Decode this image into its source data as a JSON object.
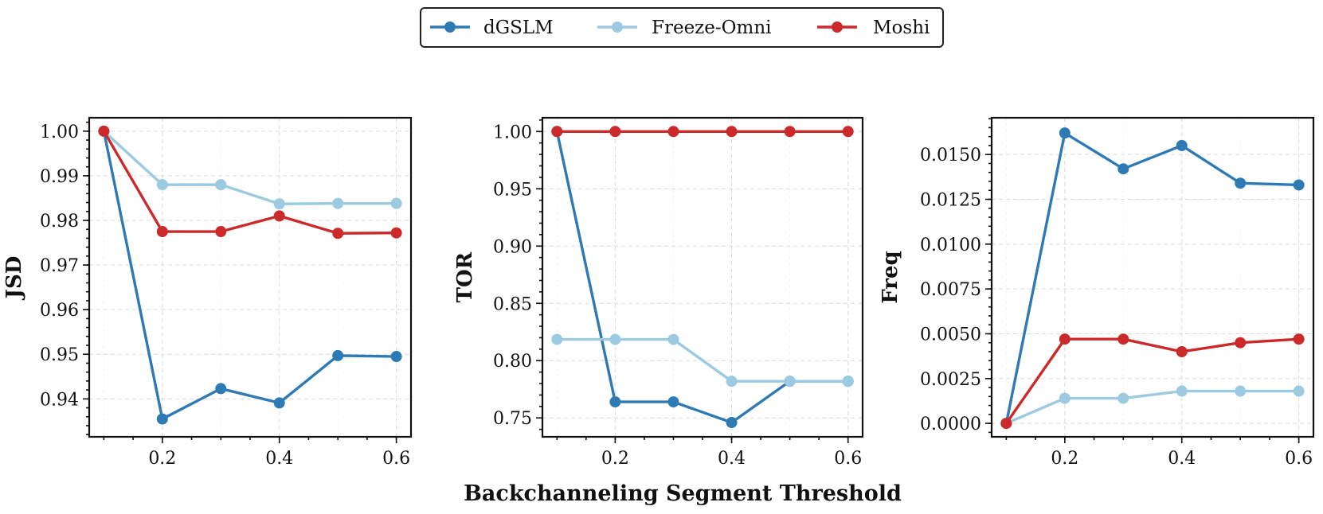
{
  "figure": {
    "xlabel": "Backchanneling Segment Threshold"
  },
  "legend": {
    "items": [
      {
        "name": "dGSLM",
        "color": "#2e7ab5"
      },
      {
        "name": "Freeze-Omni",
        "color": "#9ccae0"
      },
      {
        "name": "Moshi",
        "color": "#cc2a2a"
      }
    ]
  },
  "chart_data": [
    {
      "type": "line",
      "ylabel": "JSD",
      "x": [
        0.1,
        0.2,
        0.3,
        0.4,
        0.5,
        0.6
      ],
      "xlim": [
        0.075,
        0.625
      ],
      "ylim": [
        0.9315,
        1.003
      ],
      "xticks": [
        0.2,
        0.4,
        0.6
      ],
      "xtick_labels": [
        "0.2",
        "0.4",
        "0.6"
      ],
      "yticks": [
        0.94,
        0.95,
        0.96,
        0.97,
        0.98,
        0.99,
        1.0
      ],
      "ytick_labels": [
        "0.94",
        "0.95",
        "0.96",
        "0.97",
        "0.98",
        "0.99",
        "1.00"
      ],
      "series": [
        {
          "name": "dGSLM",
          "color": "#2e7ab5",
          "values": [
            1.0,
            0.9355,
            0.9423,
            0.9391,
            0.9497,
            0.9495
          ]
        },
        {
          "name": "Freeze-Omni",
          "color": "#9ccae0",
          "values": [
            1.0,
            0.988,
            0.988,
            0.9837,
            0.9838,
            0.9838
          ]
        },
        {
          "name": "Moshi",
          "color": "#cc2a2a",
          "values": [
            1.0,
            0.9775,
            0.9775,
            0.981,
            0.9771,
            0.9772
          ]
        }
      ]
    },
    {
      "type": "line",
      "ylabel": "TOR",
      "x": [
        0.1,
        0.2,
        0.3,
        0.4,
        0.5,
        0.6
      ],
      "xlim": [
        0.075,
        0.625
      ],
      "ylim": [
        0.7335,
        1.012
      ],
      "xticks": [
        0.2,
        0.4,
        0.6
      ],
      "xtick_labels": [
        "0.2",
        "0.4",
        "0.6"
      ],
      "yticks": [
        0.75,
        0.8,
        0.85,
        0.9,
        0.95,
        1.0
      ],
      "ytick_labels": [
        "0.75",
        "0.80",
        "0.85",
        "0.90",
        "0.95",
        "1.00"
      ],
      "series": [
        {
          "name": "dGSLM",
          "color": "#2e7ab5",
          "values": [
            1.0,
            0.764,
            0.764,
            0.746,
            0.782,
            0.782
          ]
        },
        {
          "name": "Freeze-Omni",
          "color": "#9ccae0",
          "values": [
            0.8185,
            0.8185,
            0.8185,
            0.782,
            0.782,
            0.782
          ]
        },
        {
          "name": "Moshi",
          "color": "#cc2a2a",
          "values": [
            1.0,
            1.0,
            1.0,
            1.0,
            1.0,
            1.0
          ]
        }
      ]
    },
    {
      "type": "line",
      "ylabel": "Freq",
      "x": [
        0.1,
        0.2,
        0.3,
        0.4,
        0.5,
        0.6
      ],
      "xlim": [
        0.075,
        0.625
      ],
      "ylim": [
        -0.00075,
        0.01705
      ],
      "xticks": [
        0.2,
        0.4,
        0.6
      ],
      "xtick_labels": [
        "0.2",
        "0.4",
        "0.6"
      ],
      "yticks": [
        0.0,
        0.0025,
        0.005,
        0.0075,
        0.01,
        0.0125,
        0.015
      ],
      "ytick_labels": [
        "0.0000",
        "0.0025",
        "0.0050",
        "0.0075",
        "0.0100",
        "0.0125",
        "0.0150"
      ],
      "series": [
        {
          "name": "dGSLM",
          "color": "#2e7ab5",
          "values": [
            0.0,
            0.0162,
            0.0142,
            0.0155,
            0.0134,
            0.0133
          ]
        },
        {
          "name": "Freeze-Omni",
          "color": "#9ccae0",
          "values": [
            0.0,
            0.0014,
            0.0014,
            0.0018,
            0.0018,
            0.0018
          ]
        },
        {
          "name": "Moshi",
          "color": "#cc2a2a",
          "values": [
            0.0,
            0.0047,
            0.0047,
            0.004,
            0.0045,
            0.0047
          ]
        }
      ]
    }
  ]
}
